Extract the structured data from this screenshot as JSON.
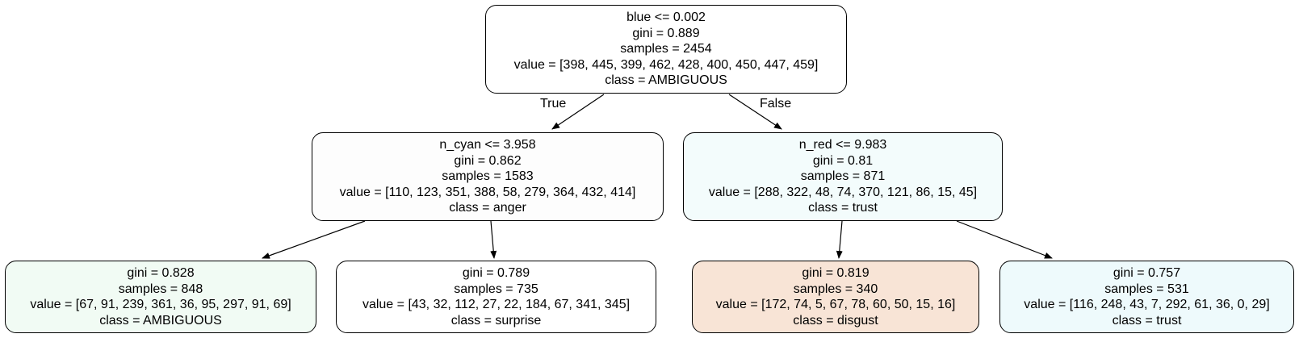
{
  "tree": {
    "nodes": {
      "n0": {
        "split": "blue <= 0.002",
        "gini": "gini = 0.889",
        "samples": "samples = 2454",
        "value": "value = [398, 445, 399, 462, 428, 400, 450, 447, 459]",
        "class": "class = AMBIGUOUS",
        "fill": "#ffffff"
      },
      "n1": {
        "split": "n_cyan <= 3.958",
        "gini": "gini = 0.862",
        "samples": "samples = 1583",
        "value": "value = [110, 123, 351, 388, 58, 279, 364, 432, 414]",
        "class": "class = anger",
        "fill": "#fdfdfd"
      },
      "n2": {
        "split": "n_red <= 9.983",
        "gini": "gini = 0.81",
        "samples": "samples = 871",
        "value": "value = [288, 322, 48, 74, 370, 121, 86, 15, 45]",
        "class": "class = trust",
        "fill": "#f3fcfc"
      },
      "n3": {
        "gini": "gini = 0.828",
        "samples": "samples = 848",
        "value": "value = [67, 91, 239, 361, 36, 95, 297, 91, 69]",
        "class": "class = AMBIGUOUS",
        "fill": "#f1fbf4"
      },
      "n4": {
        "gini": "gini = 0.789",
        "samples": "samples = 735",
        "value": "value = [43, 32, 112, 27, 22, 184, 67, 341, 345]",
        "class": "class = surprise",
        "fill": "#ffffff"
      },
      "n5": {
        "gini": "gini = 0.819",
        "samples": "samples = 340",
        "value": "value = [172, 74, 5, 67, 78, 60, 50, 15, 16]",
        "class": "class = disgust",
        "fill": "#f8e4d6"
      },
      "n6": {
        "gini": "gini = 0.757",
        "samples": "samples = 531",
        "value": "value = [116, 248, 43, 7, 292, 61, 36, 0, 29]",
        "class": "class = trust",
        "fill": "#eefafc"
      }
    },
    "edge_labels": {
      "true_label": "True",
      "false_label": "False"
    }
  }
}
